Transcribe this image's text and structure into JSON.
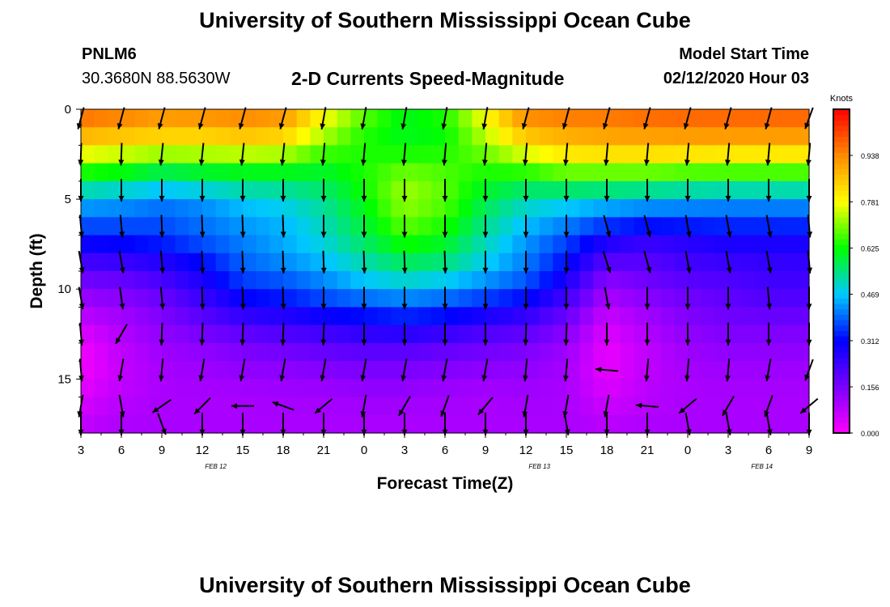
{
  "page": {
    "title": "University of Southern Mississippi Ocean Cube",
    "footer_title": "University of Southern Mississippi Ocean Cube",
    "station": "PNLM6",
    "coords": "30.3680N 88.5630W",
    "chart_title": "2-D Currents Speed-Magnitude",
    "model_start_label": "Model Start Time",
    "model_start_value": "02/12/2020 Hour 03"
  },
  "colors": {
    "scale": [
      "#ff00ff",
      "#7a00ff",
      "#0000ff",
      "#00c8ff",
      "#00ff00",
      "#ffff00",
      "#ff8c00",
      "#ff0000"
    ],
    "arrow": "#000000"
  },
  "chart_data": {
    "type": "heatmap",
    "title": "2-D Currents Speed-Magnitude",
    "xlabel": "Forecast Time(Z)",
    "ylabel": "Depth (ft)",
    "x_tick_labels": [
      "3",
      "6",
      "9",
      "12",
      "15",
      "18",
      "21",
      "0",
      "3",
      "6",
      "9",
      "12",
      "15",
      "18",
      "21",
      "0",
      "3",
      "6",
      "9"
    ],
    "x_range_hours": [
      0,
      54
    ],
    "date_labels": [
      {
        "label": "FEB 12",
        "hour": 10
      },
      {
        "label": "FEB 13",
        "hour": 34
      },
      {
        "label": "FEB 14",
        "hour": 50.5
      }
    ],
    "y_ticks": [
      0,
      5,
      10,
      15
    ],
    "ylim": [
      0,
      18
    ],
    "y_inverted": true,
    "colorbar": {
      "title": "Knots",
      "ticks": [
        "0.938",
        "0.781",
        "0.625",
        "0.469",
        "0.312",
        "0.156",
        "0.000"
      ],
      "tick_values": [
        0.938,
        0.781,
        0.625,
        0.469,
        0.312,
        0.156,
        0.0
      ],
      "range": [
        0,
        1.094
      ]
    },
    "time_hours": [
      0,
      3,
      6,
      9,
      12,
      15,
      18,
      21,
      24,
      27,
      30,
      33,
      36,
      39,
      42,
      45,
      48,
      51,
      54
    ],
    "depth_ft": [
      0,
      1,
      2,
      3,
      4,
      5,
      6,
      7,
      8,
      9,
      10,
      11,
      12,
      13,
      14,
      15,
      16,
      17,
      18
    ],
    "speed_knots": [
      [
        1.0,
        0.98,
        0.95,
        0.96,
        0.97,
        0.95,
        0.8,
        0.7,
        0.62,
        0.66,
        0.8,
        0.96,
        0.98,
        0.98,
        1.0,
        1.0,
        1.0,
        1.0,
        1.0
      ],
      [
        0.92,
        0.9,
        0.88,
        0.88,
        0.9,
        0.88,
        0.76,
        0.65,
        0.6,
        0.62,
        0.76,
        0.9,
        0.92,
        0.93,
        0.94,
        0.95,
        0.95,
        0.95,
        0.95
      ],
      [
        0.84,
        0.82,
        0.8,
        0.8,
        0.82,
        0.8,
        0.7,
        0.64,
        0.62,
        0.63,
        0.72,
        0.82,
        0.86,
        0.88,
        0.88,
        0.88,
        0.88,
        0.88,
        0.88
      ],
      [
        0.7,
        0.68,
        0.64,
        0.66,
        0.66,
        0.66,
        0.62,
        0.64,
        0.66,
        0.66,
        0.66,
        0.7,
        0.76,
        0.76,
        0.76,
        0.75,
        0.74,
        0.74,
        0.74
      ],
      [
        0.58,
        0.56,
        0.52,
        0.54,
        0.56,
        0.56,
        0.58,
        0.64,
        0.72,
        0.68,
        0.62,
        0.6,
        0.62,
        0.62,
        0.62,
        0.6,
        0.6,
        0.6,
        0.6
      ],
      [
        0.46,
        0.44,
        0.42,
        0.44,
        0.48,
        0.5,
        0.54,
        0.62,
        0.72,
        0.68,
        0.58,
        0.52,
        0.5,
        0.48,
        0.46,
        0.45,
        0.44,
        0.44,
        0.44
      ],
      [
        0.4,
        0.4,
        0.38,
        0.4,
        0.44,
        0.46,
        0.52,
        0.6,
        0.7,
        0.66,
        0.56,
        0.48,
        0.44,
        0.4,
        0.38,
        0.38,
        0.38,
        0.38,
        0.38
      ],
      [
        0.34,
        0.34,
        0.36,
        0.4,
        0.42,
        0.45,
        0.5,
        0.58,
        0.66,
        0.62,
        0.52,
        0.44,
        0.38,
        0.3,
        0.26,
        0.28,
        0.3,
        0.3,
        0.3
      ],
      [
        0.26,
        0.28,
        0.3,
        0.34,
        0.4,
        0.44,
        0.48,
        0.54,
        0.6,
        0.58,
        0.5,
        0.42,
        0.34,
        0.24,
        0.22,
        0.24,
        0.26,
        0.26,
        0.26
      ],
      [
        0.2,
        0.2,
        0.24,
        0.3,
        0.38,
        0.4,
        0.44,
        0.5,
        0.54,
        0.52,
        0.46,
        0.4,
        0.3,
        0.16,
        0.18,
        0.22,
        0.22,
        0.24,
        0.24
      ],
      [
        0.14,
        0.16,
        0.2,
        0.26,
        0.34,
        0.36,
        0.4,
        0.44,
        0.46,
        0.44,
        0.4,
        0.36,
        0.26,
        0.12,
        0.16,
        0.18,
        0.2,
        0.22,
        0.22
      ],
      [
        0.1,
        0.12,
        0.16,
        0.22,
        0.28,
        0.3,
        0.34,
        0.36,
        0.38,
        0.36,
        0.32,
        0.28,
        0.2,
        0.08,
        0.12,
        0.16,
        0.18,
        0.2,
        0.2
      ],
      [
        0.06,
        0.1,
        0.14,
        0.18,
        0.22,
        0.24,
        0.26,
        0.28,
        0.3,
        0.28,
        0.24,
        0.22,
        0.16,
        0.05,
        0.1,
        0.14,
        0.16,
        0.16,
        0.16
      ],
      [
        0.02,
        0.08,
        0.12,
        0.14,
        0.16,
        0.18,
        0.2,
        0.22,
        0.22,
        0.2,
        0.18,
        0.16,
        0.12,
        0.03,
        0.08,
        0.12,
        0.14,
        0.14,
        0.14
      ],
      [
        0.01,
        0.07,
        0.11,
        0.12,
        0.14,
        0.15,
        0.16,
        0.17,
        0.17,
        0.16,
        0.15,
        0.14,
        0.11,
        0.02,
        0.07,
        0.11,
        0.12,
        0.12,
        0.12
      ],
      [
        0.02,
        0.07,
        0.1,
        0.11,
        0.12,
        0.12,
        0.13,
        0.14,
        0.14,
        0.13,
        0.12,
        0.12,
        0.1,
        0.03,
        0.08,
        0.1,
        0.11,
        0.11,
        0.11
      ],
      [
        0.04,
        0.08,
        0.1,
        0.1,
        0.1,
        0.11,
        0.11,
        0.12,
        0.12,
        0.11,
        0.1,
        0.11,
        0.1,
        0.05,
        0.08,
        0.1,
        0.1,
        0.1,
        0.1
      ],
      [
        0.06,
        0.09,
        0.1,
        0.1,
        0.1,
        0.1,
        0.1,
        0.1,
        0.1,
        0.1,
        0.1,
        0.1,
        0.1,
        0.07,
        0.09,
        0.1,
        0.1,
        0.1,
        0.1
      ],
      [
        0.08,
        0.1,
        0.1,
        0.1,
        0.1,
        0.1,
        0.1,
        0.1,
        0.1,
        0.1,
        0.1,
        0.1,
        0.1,
        0.09,
        0.1,
        0.1,
        0.1,
        0.1,
        0.1
      ]
    ],
    "vector_times_hours": [
      0,
      3,
      6,
      9,
      12,
      15,
      18,
      21,
      24,
      27,
      30,
      33,
      36,
      39,
      42,
      45,
      48,
      51,
      54
    ],
    "vector_depths_ft": [
      0.5,
      2.5,
      4.5,
      6.5,
      8.5,
      10.5,
      12.5,
      14.5,
      16.5,
      17.5
    ],
    "vector_angles_deg": [
      [
        -105,
        -105,
        -105,
        -105,
        -105,
        -105,
        -100,
        -100,
        -100,
        -100,
        -100,
        -105,
        -105,
        -105,
        -105,
        -105,
        -105,
        -105,
        -110
      ],
      [
        -92,
        -92,
        -96,
        -96,
        -96,
        -96,
        -95,
        -95,
        -95,
        -95,
        -95,
        -95,
        -95,
        -95,
        -95,
        -95,
        -95,
        -95,
        -95
      ],
      [
        -90,
        -90,
        -90,
        -90,
        -90,
        -90,
        -90,
        -90,
        -90,
        -90,
        -90,
        -90,
        -90,
        -90,
        -90,
        -90,
        -90,
        -90,
        -90
      ],
      [
        -85,
        -85,
        -88,
        -88,
        -88,
        -88,
        -90,
        -90,
        -90,
        -90,
        -90,
        -90,
        -90,
        -75,
        -75,
        -80,
        -80,
        -80,
        -85
      ],
      [
        -80,
        -80,
        -85,
        -88,
        -88,
        -88,
        -88,
        -88,
        -88,
        -88,
        -90,
        -90,
        -90,
        -72,
        -75,
        -80,
        -80,
        -80,
        -85
      ],
      [
        -80,
        -82,
        -85,
        -88,
        -88,
        -88,
        -90,
        -90,
        -90,
        -90,
        -90,
        -90,
        -90,
        -80,
        -90,
        -90,
        -90,
        -85,
        -90
      ],
      [
        -85,
        -120,
        -92,
        -92,
        -92,
        -92,
        -92,
        -90,
        -90,
        -90,
        -90,
        -92,
        -92,
        -90,
        -90,
        -90,
        -90,
        -90,
        -90
      ],
      [
        -85,
        -100,
        -95,
        -100,
        -100,
        -100,
        -100,
        -100,
        -100,
        -100,
        -100,
        -95,
        -95,
        175,
        -95,
        -95,
        -95,
        -100,
        -110
      ],
      [
        -100,
        -80,
        -145,
        -135,
        180,
        160,
        -140,
        -100,
        -120,
        -110,
        -130,
        -100,
        -100,
        -100,
        175,
        -140,
        -120,
        -110,
        -140
      ],
      [
        -90,
        -90,
        -70,
        -90,
        -90,
        -90,
        -90,
        -90,
        -90,
        -90,
        -90,
        -90,
        -80,
        -90,
        -90,
        -80,
        -80,
        -80,
        -90
      ]
    ]
  }
}
